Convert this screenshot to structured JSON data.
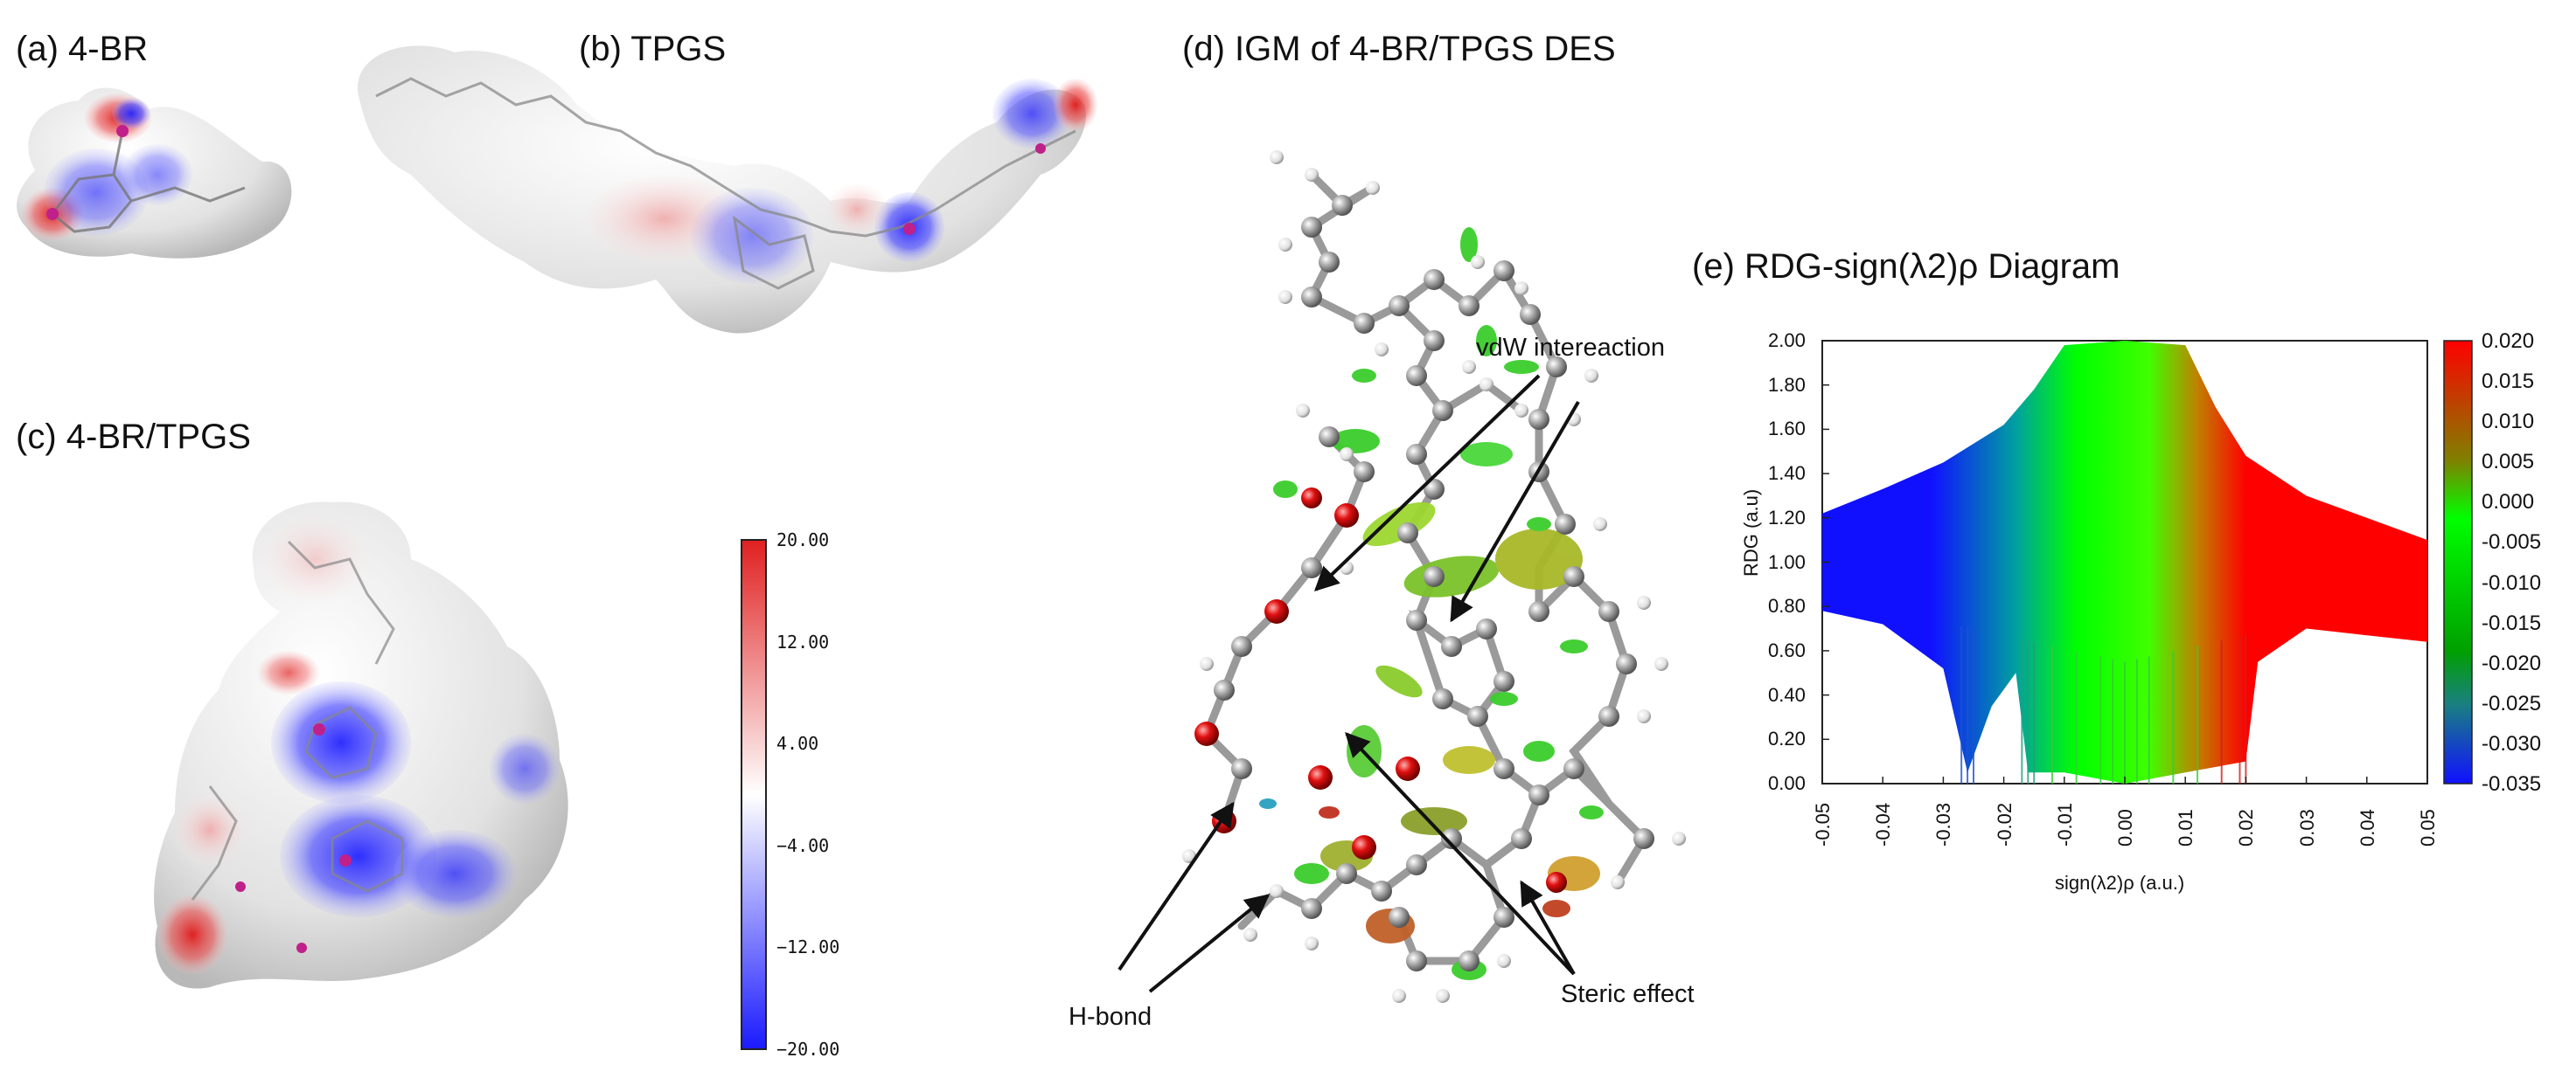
{
  "panels": {
    "a": {
      "label": "(a)  4-BR"
    },
    "b": {
      "label": "(b)  TPGS"
    },
    "c": {
      "label": "(c)  4-BR/TPGS"
    },
    "d": {
      "label": "(d)  IGM of 4-BR/TPGS DES"
    },
    "e": {
      "label": "(e)  RDG-sign(λ2)ρ Diagram"
    }
  },
  "esp_colorbar": {
    "ticks": [
      "20.00",
      "12.00",
      "4.00",
      "−4.00",
      "−12.00",
      "−20.00"
    ],
    "colors": {
      "positive": "#e02020",
      "zero": "#ffffff",
      "negative": "#1a1aff"
    }
  },
  "igm_annotations": {
    "vdw": "vdW intereaction",
    "hbond": "H-bond",
    "steric": "Steric effect"
  },
  "chart_data": {
    "type": "scatter",
    "title": "RDG-sign(λ2)ρ Diagram",
    "xlabel": "sign(λ2)ρ (a.u.)",
    "ylabel": "RDG (a.u)",
    "xlim": [
      -0.05,
      0.05
    ],
    "ylim": [
      0.0,
      2.0
    ],
    "x_ticks": [
      "-0.05",
      "-0.04",
      "-0.03",
      "-0.02",
      "-0.01",
      "0.00",
      "0.01",
      "0.02",
      "0.03",
      "0.04",
      "0.05"
    ],
    "y_ticks": [
      "0.00",
      "0.20",
      "0.40",
      "0.60",
      "0.80",
      "1.00",
      "1.20",
      "1.40",
      "1.60",
      "1.80",
      "2.00"
    ],
    "colorbar": {
      "min": -0.035,
      "max": 0.02,
      "ticks": [
        "0.020",
        "0.015",
        "0.010",
        "0.005",
        "0.000",
        "-0.005",
        "-0.010",
        "-0.015",
        "-0.020",
        "-0.025",
        "-0.030",
        "-0.035"
      ],
      "stops": [
        "#1010ff",
        "#00ff00",
        "#ff0000"
      ]
    },
    "envelope_upper": [
      [
        -0.05,
        1.22
      ],
      [
        -0.04,
        1.33
      ],
      [
        -0.03,
        1.45
      ],
      [
        -0.02,
        1.62
      ],
      [
        -0.015,
        1.78
      ],
      [
        -0.01,
        1.98
      ],
      [
        0.0,
        2.0
      ],
      [
        0.01,
        1.98
      ],
      [
        0.015,
        1.7
      ],
      [
        0.02,
        1.48
      ],
      [
        0.03,
        1.3
      ],
      [
        0.04,
        1.2
      ],
      [
        0.05,
        1.1
      ]
    ],
    "envelope_lower": [
      [
        -0.05,
        0.78
      ],
      [
        -0.04,
        0.72
      ],
      [
        -0.03,
        0.52
      ],
      [
        -0.026,
        0.05
      ],
      [
        -0.022,
        0.35
      ],
      [
        -0.018,
        0.5
      ],
      [
        -0.016,
        0.05
      ],
      [
        -0.01,
        0.05
      ],
      [
        0.0,
        0.0
      ],
      [
        0.01,
        0.05
      ],
      [
        0.02,
        0.1
      ],
      [
        0.022,
        0.55
      ],
      [
        0.03,
        0.7
      ],
      [
        0.04,
        0.67
      ],
      [
        0.05,
        0.64
      ]
    ]
  }
}
